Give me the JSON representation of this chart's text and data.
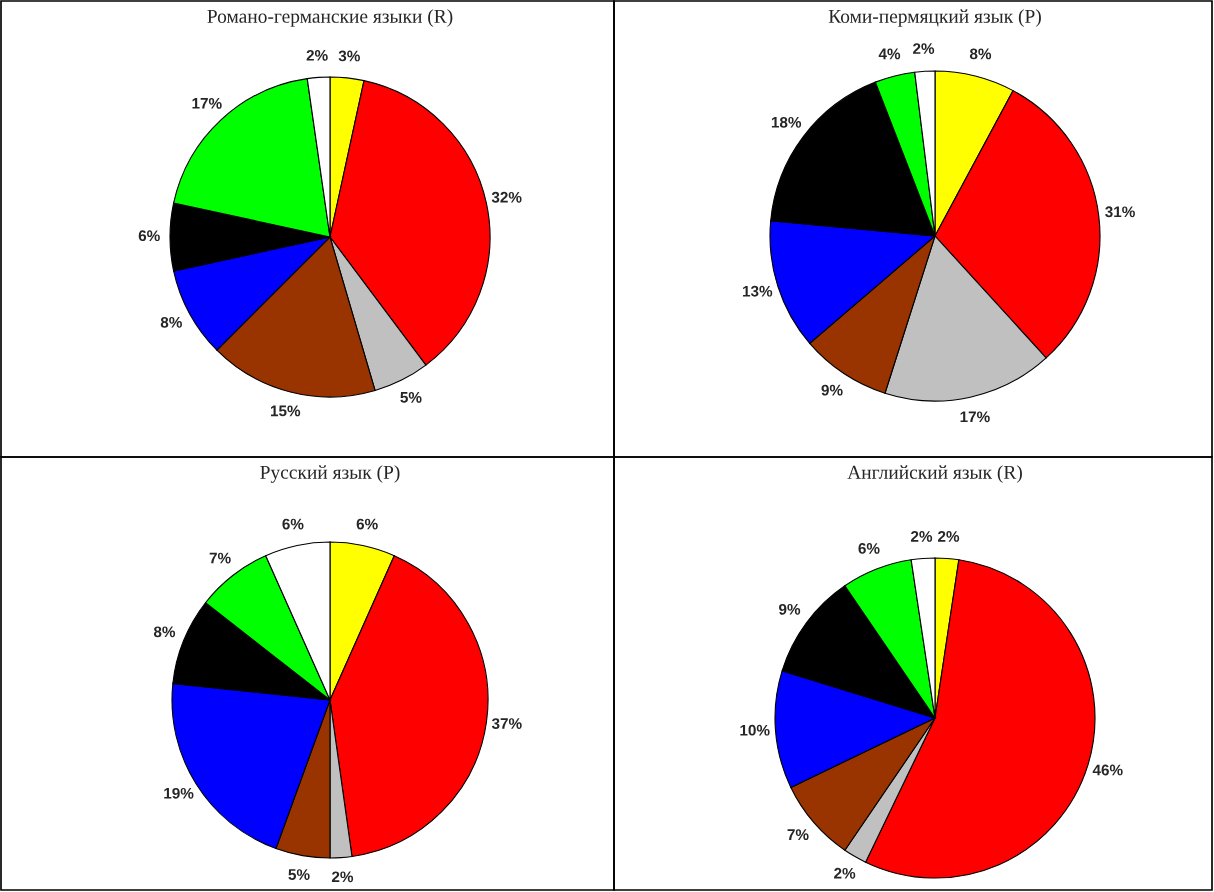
{
  "chart_data": [
    {
      "type": "pie",
      "title": "Романо-германские языки (R)",
      "categories": [
        null,
        null,
        null,
        null,
        null,
        null,
        null,
        null
      ],
      "values": [
        3,
        32,
        5,
        15,
        8,
        6,
        17,
        2
      ],
      "value_labels": [
        "3%",
        "32%",
        "5%",
        "15%",
        "8%",
        "6%",
        "17%",
        "2%"
      ],
      "colors": [
        "#ffff00",
        "#ff0000",
        "#c0c0c0",
        "#993300",
        "#0000ff",
        "#000000",
        "#00ff00",
        "#ffffff"
      ]
    },
    {
      "type": "pie",
      "title": "Коми-пермяцкий язык (P)",
      "categories": [
        null,
        null,
        null,
        null,
        null,
        null,
        null,
        null
      ],
      "values": [
        8,
        31,
        17,
        9,
        13,
        18,
        4,
        2
      ],
      "value_labels": [
        "8%",
        "31%",
        "17%",
        "9%",
        "13%",
        "18%",
        "4%",
        "2%"
      ],
      "colors": [
        "#ffff00",
        "#ff0000",
        "#c0c0c0",
        "#993300",
        "#0000ff",
        "#000000",
        "#00ff00",
        "#ffffff"
      ]
    },
    {
      "type": "pie",
      "title": "Русский язык (P)",
      "categories": [
        null,
        null,
        null,
        null,
        null,
        null,
        null,
        null
      ],
      "values": [
        6,
        37,
        2,
        5,
        19,
        8,
        7,
        6
      ],
      "value_labels": [
        "6%",
        "37%",
        "2%",
        "5%",
        "19%",
        "8%",
        "7%",
        "6%"
      ],
      "colors": [
        "#ffff00",
        "#ff0000",
        "#c0c0c0",
        "#993300",
        "#0000ff",
        "#000000",
        "#00ff00",
        "#ffffff"
      ]
    },
    {
      "type": "pie",
      "title": "Английский язык (R)",
      "categories": [
        null,
        null,
        null,
        null,
        null,
        null,
        null,
        null
      ],
      "values": [
        2,
        46,
        2,
        7,
        10,
        9,
        6,
        2
      ],
      "value_labels": [
        "2%",
        "46%",
        "2%",
        "7%",
        "10%",
        "9%",
        "6%",
        "2%"
      ],
      "colors": [
        "#ffff00",
        "#ff0000",
        "#c0c0c0",
        "#993300",
        "#0000ff",
        "#000000",
        "#00ff00",
        "#ffffff"
      ]
    }
  ]
}
